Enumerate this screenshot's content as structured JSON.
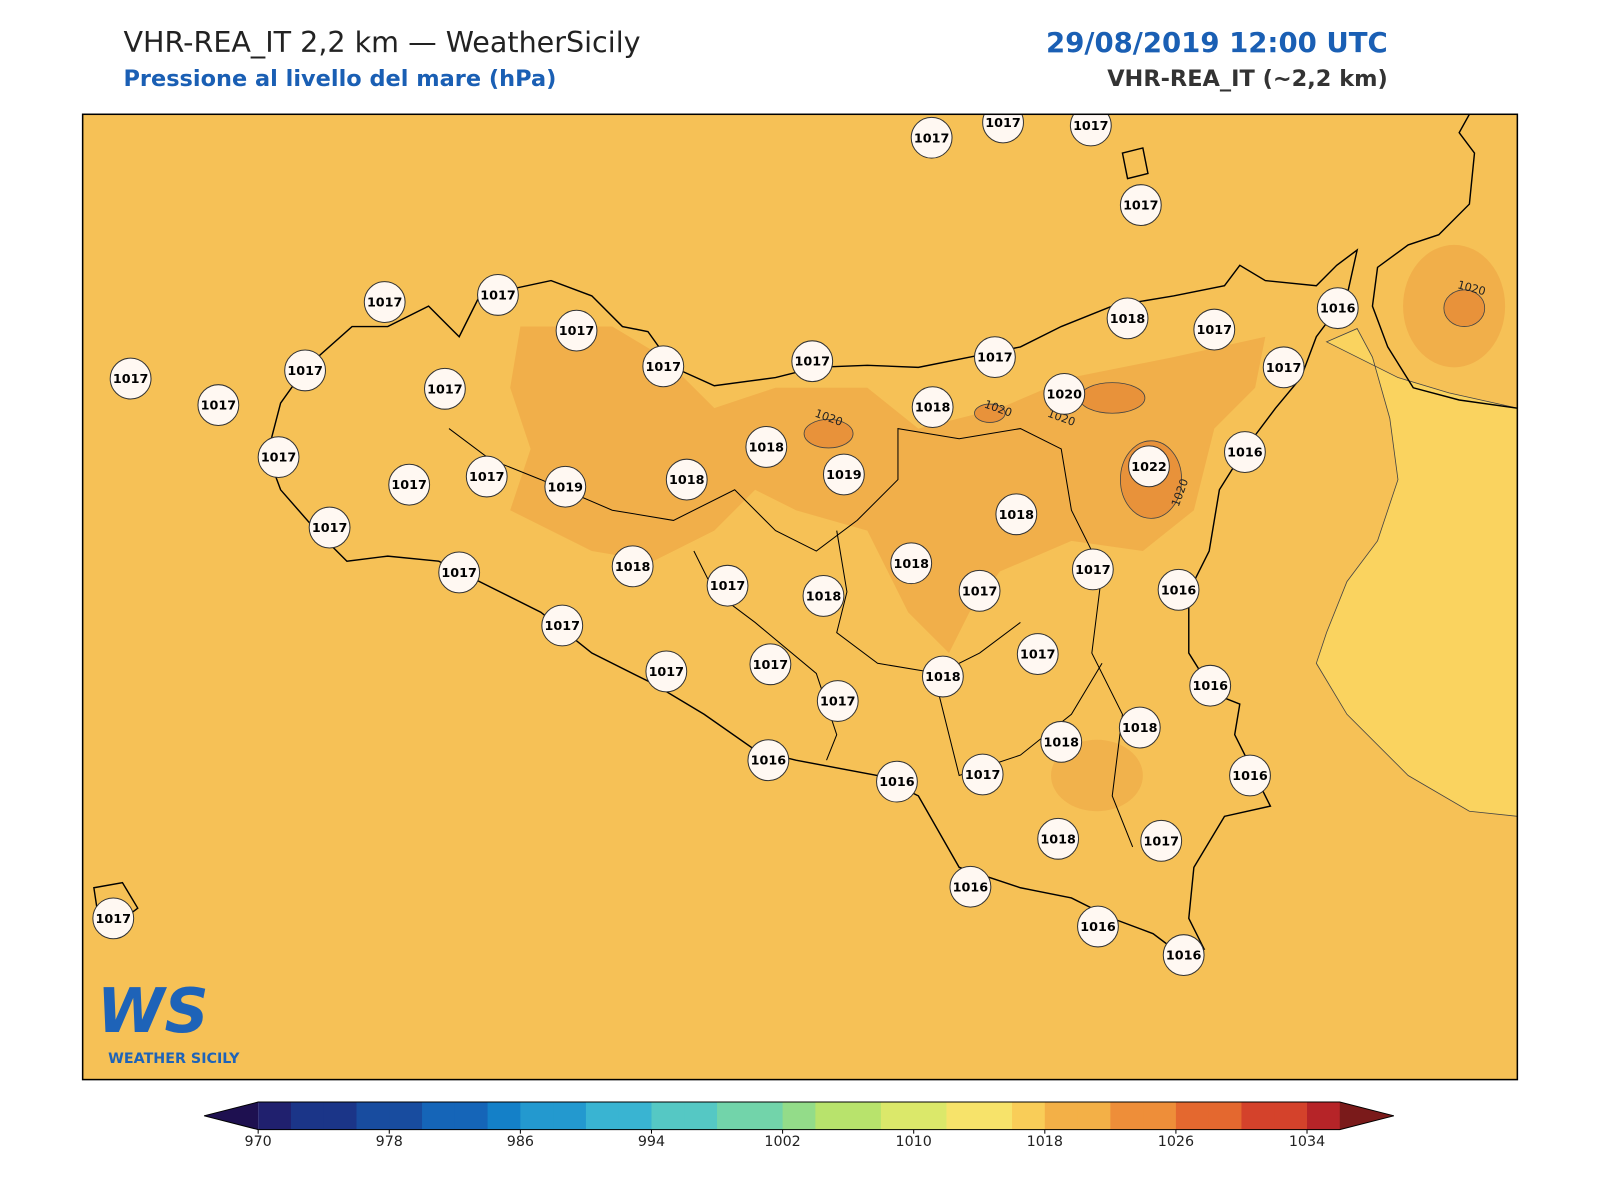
{
  "header": {
    "title": "VHR-REA_IT 2,2 km — WeatherSicily",
    "subtitle": "Pressione al livello del mare (hPa)",
    "datetime": "29/08/2019 12:00 UTC",
    "model": "VHR-REA_IT (~2,2 km)"
  },
  "stations": [
    1017,
    1017,
    1017,
    1017,
    1017,
    1017,
    1017,
    1017,
    1017,
    1017,
    1017,
    1017,
    1017,
    1018,
    1017,
    1016,
    1017,
    1017,
    1018,
    1020,
    1018,
    1016,
    1017,
    1017,
    1017,
    1019,
    1018,
    1019,
    1022,
    1018,
    1017,
    1017,
    1018,
    1018,
    1017,
    1016,
    1017,
    1018,
    1017,
    1017,
    1017,
    1017,
    1017,
    1018,
    1016,
    1017,
    1018,
    1018,
    1016,
    1016,
    1017,
    1016,
    1018,
    1017,
    1016,
    1016,
    1016,
    1017
  ],
  "contour_labels": [
    1020,
    1020,
    1020,
    1020,
    1020
  ],
  "logo": {
    "mark": "WS",
    "name": "WEATHER SICILY"
  },
  "colorbar": {
    "clim": [
      970,
      1036
    ],
    "ticks": [
      970,
      978,
      986,
      994,
      1002,
      1010,
      1018,
      1026,
      1034
    ]
  }
}
